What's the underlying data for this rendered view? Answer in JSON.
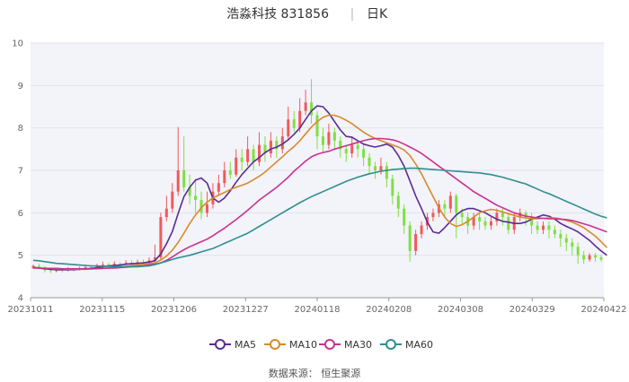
{
  "chart_data": {
    "type": "candlestick",
    "title": "浩淼科技 831856",
    "period": "日K",
    "source_label": "数据来源： 恒生聚源",
    "ylim": [
      4,
      10
    ],
    "yticks": [
      "4",
      "5",
      "6",
      "7",
      "8",
      "9",
      "10"
    ],
    "xticks": [
      "20231011",
      "20231115",
      "20231206",
      "20231227",
      "20240118",
      "20240208",
      "20240308",
      "20240329",
      "20240422"
    ],
    "grid": true,
    "legend_position": "bottom",
    "colors": {
      "up": "#f05a5a",
      "down": "#7ee040",
      "ma5": "#5b2c91",
      "ma10": "#d88a2b",
      "ma30": "#c8328f",
      "ma60": "#2f8f8f"
    },
    "candles": [
      [
        4.7,
        4.75,
        4.68,
        4.78
      ],
      [
        4.75,
        4.72,
        4.68,
        4.8
      ],
      [
        4.72,
        4.65,
        4.6,
        4.74
      ],
      [
        4.65,
        4.63,
        4.58,
        4.7
      ],
      [
        4.63,
        4.66,
        4.6,
        4.7
      ],
      [
        4.66,
        4.64,
        4.6,
        4.7
      ],
      [
        4.64,
        4.67,
        4.62,
        4.72
      ],
      [
        4.67,
        4.66,
        4.62,
        4.7
      ],
      [
        4.66,
        4.69,
        4.64,
        4.73
      ],
      [
        4.69,
        4.72,
        4.66,
        4.78
      ],
      [
        4.72,
        4.7,
        4.66,
        4.76
      ],
      [
        4.7,
        4.74,
        4.68,
        4.8
      ],
      [
        4.74,
        4.78,
        4.7,
        4.85
      ],
      [
        4.78,
        4.76,
        4.72,
        4.82
      ],
      [
        4.76,
        4.8,
        4.74,
        4.86
      ],
      [
        4.8,
        4.78,
        4.74,
        4.84
      ],
      [
        4.78,
        4.82,
        4.76,
        4.88
      ],
      [
        4.82,
        4.8,
        4.76,
        4.88
      ],
      [
        4.8,
        4.84,
        4.78,
        4.9
      ],
      [
        4.84,
        4.82,
        4.78,
        4.9
      ],
      [
        4.82,
        4.88,
        4.8,
        4.95
      ],
      [
        4.88,
        4.95,
        4.85,
        5.25
      ],
      [
        4.95,
        5.9,
        4.9,
        6.0
      ],
      [
        5.9,
        6.1,
        5.8,
        6.4
      ],
      [
        6.1,
        6.5,
        6.0,
        6.7
      ],
      [
        6.5,
        7.0,
        6.4,
        8.02
      ],
      [
        7.0,
        6.6,
        6.5,
        7.8
      ],
      [
        6.6,
        6.4,
        6.2,
        6.9
      ],
      [
        6.4,
        6.3,
        6.0,
        6.8
      ],
      [
        6.3,
        6.0,
        5.85,
        6.5
      ],
      [
        6.0,
        6.2,
        5.9,
        6.5
      ],
      [
        6.2,
        6.5,
        6.1,
        6.7
      ],
      [
        6.5,
        6.7,
        6.4,
        6.9
      ],
      [
        6.7,
        7.0,
        6.6,
        7.2
      ],
      [
        7.0,
        6.9,
        6.8,
        7.2
      ],
      [
        6.9,
        7.3,
        6.85,
        7.5
      ],
      [
        7.3,
        7.2,
        7.0,
        7.5
      ],
      [
        7.2,
        7.5,
        7.1,
        7.8
      ],
      [
        7.5,
        7.2,
        7.0,
        7.6
      ],
      [
        7.2,
        7.6,
        7.1,
        7.9
      ],
      [
        7.6,
        7.4,
        7.2,
        7.8
      ],
      [
        7.4,
        7.7,
        7.3,
        7.9
      ],
      [
        7.7,
        7.5,
        7.3,
        7.8
      ],
      [
        7.5,
        7.8,
        7.4,
        8.0
      ],
      [
        7.8,
        8.2,
        7.7,
        8.5
      ],
      [
        8.2,
        8.0,
        7.9,
        8.4
      ],
      [
        8.0,
        8.4,
        7.9,
        8.7
      ],
      [
        8.4,
        8.6,
        8.3,
        8.9
      ],
      [
        8.6,
        8.3,
        8.1,
        9.15
      ],
      [
        8.3,
        7.8,
        7.5,
        8.4
      ],
      [
        7.8,
        7.6,
        7.4,
        8.0
      ],
      [
        7.6,
        7.9,
        7.5,
        8.1
      ],
      [
        7.9,
        7.7,
        7.5,
        8.0
      ],
      [
        7.7,
        7.5,
        7.3,
        7.8
      ],
      [
        7.5,
        7.4,
        7.2,
        7.6
      ],
      [
        7.4,
        7.6,
        7.3,
        7.8
      ],
      [
        7.6,
        7.5,
        7.3,
        7.7
      ],
      [
        7.5,
        7.3,
        7.1,
        7.6
      ],
      [
        7.3,
        7.1,
        6.9,
        7.4
      ],
      [
        7.1,
        7.0,
        6.8,
        7.2
      ],
      [
        7.0,
        7.1,
        6.9,
        7.3
      ],
      [
        7.1,
        6.8,
        6.6,
        7.2
      ],
      [
        6.8,
        6.4,
        6.2,
        6.9
      ],
      [
        6.4,
        6.1,
        5.9,
        6.5
      ],
      [
        6.1,
        5.7,
        5.5,
        6.2
      ],
      [
        5.7,
        5.1,
        4.85,
        5.8
      ],
      [
        5.1,
        5.5,
        5.0,
        5.6
      ],
      [
        5.5,
        5.7,
        5.4,
        5.8
      ],
      [
        5.7,
        5.9,
        5.6,
        6.0
      ],
      [
        5.9,
        6.0,
        5.8,
        6.1
      ],
      [
        6.0,
        6.2,
        5.9,
        6.3
      ],
      [
        6.2,
        6.1,
        5.9,
        6.3
      ],
      [
        6.1,
        6.4,
        6.0,
        6.5
      ],
      [
        6.4,
        6.0,
        5.4,
        6.45
      ],
      [
        6.0,
        5.9,
        5.7,
        6.1
      ],
      [
        5.9,
        5.7,
        5.5,
        6.0
      ],
      [
        5.7,
        5.9,
        5.6,
        6.0
      ],
      [
        5.9,
        5.8,
        5.6,
        6.0
      ],
      [
        5.8,
        5.7,
        5.6,
        5.9
      ],
      [
        5.7,
        5.8,
        5.6,
        5.9
      ],
      [
        5.8,
        6.0,
        5.7,
        6.1
      ],
      [
        6.0,
        5.9,
        5.7,
        6.1
      ],
      [
        5.9,
        5.6,
        5.5,
        6.0
      ],
      [
        5.6,
        5.9,
        5.5,
        6.0
      ],
      [
        5.9,
        6.0,
        5.8,
        6.1
      ],
      [
        6.0,
        5.9,
        5.7,
        6.05
      ],
      [
        5.9,
        5.7,
        5.5,
        6.0
      ],
      [
        5.7,
        5.6,
        5.5,
        5.8
      ],
      [
        5.6,
        5.7,
        5.5,
        5.8
      ],
      [
        5.7,
        5.6,
        5.4,
        5.8
      ],
      [
        5.6,
        5.5,
        5.4,
        5.7
      ],
      [
        5.5,
        5.4,
        5.2,
        5.6
      ],
      [
        5.4,
        5.3,
        5.1,
        5.5
      ],
      [
        5.3,
        5.2,
        5.0,
        5.4
      ],
      [
        5.2,
        5.0,
        4.8,
        5.3
      ],
      [
        5.0,
        4.9,
        4.8,
        5.1
      ],
      [
        4.9,
        5.0,
        4.85,
        5.05
      ],
      [
        5.0,
        4.95,
        4.85,
        5.05
      ],
      [
        4.95,
        4.9,
        4.85,
        5.0
      ]
    ],
    "series": [
      {
        "name": "MA5",
        "values": [
          4.72,
          4.7,
          4.68,
          4.67,
          4.66,
          4.66,
          4.66,
          4.66,
          4.67,
          4.68,
          4.69,
          4.71,
          4.73,
          4.75,
          4.76,
          4.77,
          4.79,
          4.8,
          4.81,
          4.82,
          4.84,
          4.87,
          5.03,
          5.27,
          5.56,
          5.98,
          6.38,
          6.6,
          6.77,
          6.82,
          6.7,
          6.35,
          6.25,
          6.35,
          6.52,
          6.72,
          6.9,
          7.05,
          7.2,
          7.3,
          7.42,
          7.5,
          7.55,
          7.62,
          7.72,
          7.85,
          8.0,
          8.2,
          8.4,
          8.52,
          8.5,
          8.35,
          8.15,
          7.95,
          7.8,
          7.78,
          7.7,
          7.62,
          7.58,
          7.55,
          7.58,
          7.62,
          7.55,
          7.35,
          7.1,
          6.75,
          6.4,
          6.1,
          5.78,
          5.55,
          5.52,
          5.65,
          5.8,
          5.95,
          6.05,
          6.1,
          6.1,
          6.05,
          6.0,
          5.92,
          5.85,
          5.8,
          5.78,
          5.75,
          5.75,
          5.78,
          5.85,
          5.9,
          5.95,
          5.92,
          5.85,
          5.75,
          5.68,
          5.62,
          5.55,
          5.45,
          5.35,
          5.22,
          5.1,
          5.0
        ]
      },
      {
        "name": "MA10",
        "values": [
          4.71,
          4.7,
          4.69,
          4.69,
          4.68,
          4.68,
          4.67,
          4.67,
          4.67,
          4.67,
          4.68,
          4.68,
          4.69,
          4.7,
          4.71,
          4.73,
          4.74,
          4.76,
          4.77,
          4.78,
          4.8,
          4.82,
          4.89,
          4.98,
          5.12,
          5.3,
          5.52,
          5.75,
          5.95,
          6.12,
          6.25,
          6.35,
          6.42,
          6.48,
          6.55,
          6.6,
          6.65,
          6.7,
          6.78,
          6.86,
          6.96,
          7.08,
          7.2,
          7.32,
          7.45,
          7.56,
          7.7,
          7.86,
          8.02,
          8.15,
          8.25,
          8.3,
          8.3,
          8.25,
          8.18,
          8.1,
          8.0,
          7.9,
          7.82,
          7.75,
          7.7,
          7.65,
          7.6,
          7.55,
          7.48,
          7.35,
          7.15,
          6.92,
          6.65,
          6.38,
          6.12,
          5.9,
          5.75,
          5.68,
          5.72,
          5.8,
          5.9,
          6.0,
          6.05,
          6.08,
          6.06,
          6.02,
          5.98,
          5.94,
          5.9,
          5.88,
          5.86,
          5.86,
          5.87,
          5.88,
          5.88,
          5.86,
          5.82,
          5.78,
          5.72,
          5.65,
          5.55,
          5.45,
          5.32,
          5.18
        ]
      },
      {
        "name": "MA30",
        "values": [
          4.7,
          4.7,
          4.69,
          4.69,
          4.69,
          4.68,
          4.68,
          4.68,
          4.68,
          4.68,
          4.68,
          4.69,
          4.69,
          4.7,
          4.7,
          4.71,
          4.72,
          4.73,
          4.74,
          4.75,
          4.77,
          4.79,
          4.82,
          4.88,
          4.96,
          5.05,
          5.13,
          5.2,
          5.26,
          5.32,
          5.38,
          5.46,
          5.55,
          5.64,
          5.74,
          5.84,
          5.95,
          6.06,
          6.18,
          6.3,
          6.4,
          6.5,
          6.6,
          6.72,
          6.84,
          6.98,
          7.1,
          7.22,
          7.32,
          7.38,
          7.42,
          7.45,
          7.5,
          7.54,
          7.58,
          7.62,
          7.66,
          7.7,
          7.73,
          7.75,
          7.75,
          7.74,
          7.72,
          7.68,
          7.62,
          7.55,
          7.48,
          7.4,
          7.3,
          7.2,
          7.1,
          7.0,
          6.9,
          6.8,
          6.7,
          6.6,
          6.5,
          6.42,
          6.34,
          6.26,
          6.18,
          6.12,
          6.06,
          6.0,
          5.96,
          5.92,
          5.9,
          5.88,
          5.87,
          5.86,
          5.86,
          5.85,
          5.84,
          5.82,
          5.78,
          5.74,
          5.7,
          5.65,
          5.6,
          5.55
        ]
      },
      {
        "name": "MA60",
        "values": [
          4.88,
          4.87,
          4.85,
          4.83,
          4.81,
          4.8,
          4.79,
          4.78,
          4.77,
          4.76,
          4.75,
          4.75,
          4.74,
          4.74,
          4.73,
          4.73,
          4.73,
          4.73,
          4.73,
          4.74,
          4.75,
          4.78,
          4.82,
          4.86,
          4.9,
          4.94,
          4.97,
          5.0,
          5.04,
          5.08,
          5.12,
          5.16,
          5.22,
          5.28,
          5.34,
          5.4,
          5.46,
          5.52,
          5.6,
          5.68,
          5.76,
          5.84,
          5.92,
          6.0,
          6.08,
          6.16,
          6.24,
          6.31,
          6.38,
          6.44,
          6.5,
          6.56,
          6.62,
          6.68,
          6.74,
          6.79,
          6.84,
          6.88,
          6.92,
          6.95,
          6.98,
          7.0,
          7.02,
          7.03,
          7.04,
          7.05,
          7.05,
          7.04,
          7.03,
          7.02,
          7.01,
          7.0,
          6.99,
          6.98,
          6.97,
          6.96,
          6.95,
          6.94,
          6.92,
          6.9,
          6.87,
          6.84,
          6.8,
          6.76,
          6.72,
          6.68,
          6.62,
          6.56,
          6.5,
          6.45,
          6.39,
          6.33,
          6.27,
          6.21,
          6.15,
          6.09,
          6.03,
          5.97,
          5.92,
          5.88
        ]
      }
    ]
  }
}
